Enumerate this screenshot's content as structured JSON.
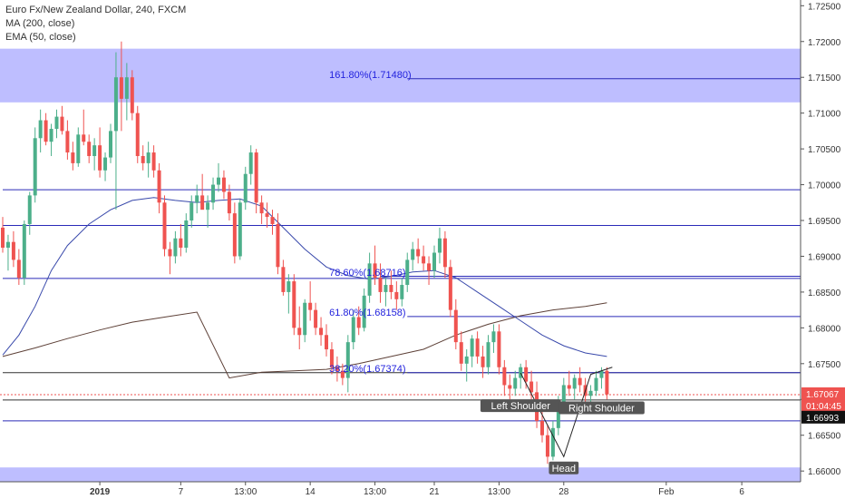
{
  "header": {
    "title": "Euro Fx/New Zealand Dollar, 240, FXCM",
    "indicators": [
      "MA (200, close)",
      "EMA (50, close)"
    ]
  },
  "price_labels": {
    "last_price": "1.67067",
    "countdown": "01:04:45",
    "line_price": "1.66993"
  },
  "colors": {
    "up": "#4caf8a",
    "down": "#ef5350",
    "ma": "#5d4037",
    "ema": "#3949ab",
    "zone": "#b3b3ff",
    "hline": "#2a2ab8",
    "darkline": "#333333",
    "fib": "#2222dd"
  },
  "chart_data": {
    "type": "candlestick",
    "title": "Euro Fx/New Zealand Dollar, 240, FXCM",
    "y_ticks": [
      "1.72500",
      "1.72000",
      "1.71500",
      "1.71000",
      "1.70500",
      "1.70000",
      "1.69500",
      "1.69000",
      "1.68500",
      "1.68000",
      "1.67500",
      "1.67000",
      "1.66500",
      "1.66000"
    ],
    "y_range": [
      1.6585,
      1.7258
    ],
    "x_ticks": [
      {
        "label": "2019",
        "i": 18,
        "bold": true
      },
      {
        "label": "7",
        "i": 33
      },
      {
        "label": "13:00",
        "i": 45
      },
      {
        "label": "14",
        "i": 57
      },
      {
        "label": "13:00",
        "i": 69
      },
      {
        "label": "21",
        "i": 80
      },
      {
        "label": "13:00",
        "i": 92
      },
      {
        "label": "28",
        "i": 104
      },
      {
        "label": "Feb",
        "i": 123
      },
      {
        "label": "6",
        "i": 137
      },
      {
        "label": "13:00",
        "i": 149
      }
    ],
    "candles": [
      [
        1.694,
        1.6955,
        1.6905,
        1.6912
      ],
      [
        1.6912,
        1.693,
        1.688,
        1.692
      ],
      [
        1.692,
        1.6935,
        1.6885,
        1.6895
      ],
      [
        1.6895,
        1.691,
        1.686,
        1.687
      ],
      [
        1.687,
        1.695,
        1.686,
        1.6945
      ],
      [
        1.6945,
        1.699,
        1.693,
        1.6985
      ],
      [
        1.6985,
        1.708,
        1.6975,
        1.7065
      ],
      [
        1.7065,
        1.7105,
        1.7045,
        1.709
      ],
      [
        1.709,
        1.71,
        1.7055,
        1.706
      ],
      [
        1.706,
        1.7085,
        1.704,
        1.7078
      ],
      [
        1.7078,
        1.7105,
        1.7065,
        1.7095
      ],
      [
        1.7095,
        1.711,
        1.707,
        1.7075
      ],
      [
        1.7075,
        1.709,
        1.7035,
        1.7045
      ],
      [
        1.7045,
        1.706,
        1.702,
        1.703
      ],
      [
        1.703,
        1.708,
        1.7025,
        1.707
      ],
      [
        1.707,
        1.7105,
        1.7055,
        1.706
      ],
      [
        1.706,
        1.707,
        1.703,
        1.704
      ],
      [
        1.704,
        1.7065,
        1.702,
        1.7055
      ],
      [
        1.7055,
        1.708,
        1.701,
        1.702
      ],
      [
        1.702,
        1.7045,
        1.7005,
        1.7038
      ],
      [
        1.7038,
        1.7085,
        1.703,
        1.7075
      ],
      [
        1.7075,
        1.7185,
        1.6965,
        1.715
      ],
      [
        1.715,
        1.72,
        1.7075,
        1.712
      ],
      [
        1.712,
        1.717,
        1.709,
        1.715
      ],
      [
        1.715,
        1.716,
        1.709,
        1.71
      ],
      [
        1.71,
        1.711,
        1.703,
        1.704
      ],
      [
        1.704,
        1.7055,
        1.702,
        1.703
      ],
      [
        1.703,
        1.706,
        1.701,
        1.7045
      ],
      [
        1.7045,
        1.7055,
        1.701,
        1.702
      ],
      [
        1.702,
        1.703,
        1.696,
        1.6975
      ],
      [
        1.6975,
        1.6985,
        1.69,
        1.691
      ],
      [
        1.691,
        1.692,
        1.6875,
        1.69
      ],
      [
        1.69,
        1.6935,
        1.689,
        1.6925
      ],
      [
        1.6925,
        1.6945,
        1.69,
        1.6912
      ],
      [
        1.6912,
        1.696,
        1.6905,
        1.695
      ],
      [
        1.695,
        1.6985,
        1.694,
        1.6975
      ],
      [
        1.6975,
        1.7,
        1.696,
        1.6985
      ],
      [
        1.6985,
        1.7015,
        1.697,
        1.6965
      ],
      [
        1.6965,
        1.6985,
        1.694,
        1.6975
      ],
      [
        1.6975,
        1.701,
        1.6965,
        1.7
      ],
      [
        1.7,
        1.703,
        1.699,
        1.701
      ],
      [
        1.701,
        1.702,
        1.698,
        1.699
      ],
      [
        1.699,
        1.7,
        1.695,
        1.696
      ],
      [
        1.696,
        1.6975,
        1.689,
        1.69
      ],
      [
        1.69,
        1.698,
        1.6895,
        1.6975
      ],
      [
        1.6975,
        1.7025,
        1.6965,
        1.7015
      ],
      [
        1.7015,
        1.7055,
        1.7,
        1.7045
      ],
      [
        1.7045,
        1.705,
        1.696,
        1.6975
      ],
      [
        1.6975,
        1.6985,
        1.6945,
        1.696
      ],
      [
        1.696,
        1.6975,
        1.694,
        1.6955
      ],
      [
        1.6955,
        1.6965,
        1.693,
        1.6945
      ],
      [
        1.6945,
        1.696,
        1.6875,
        1.6885
      ],
      [
        1.6885,
        1.6895,
        1.6845,
        1.685
      ],
      [
        1.685,
        1.6875,
        1.682,
        1.6865
      ],
      [
        1.6865,
        1.6875,
        1.679,
        1.68
      ],
      [
        1.68,
        1.683,
        1.677,
        1.679
      ],
      [
        1.679,
        1.684,
        1.678,
        1.6835
      ],
      [
        1.6835,
        1.6865,
        1.681,
        1.6825
      ],
      [
        1.6825,
        1.6835,
        1.679,
        1.68
      ],
      [
        1.68,
        1.6815,
        1.6775,
        1.679
      ],
      [
        1.679,
        1.6805,
        1.676,
        1.677
      ],
      [
        1.677,
        1.678,
        1.6735,
        1.6745
      ],
      [
        1.6745,
        1.676,
        1.6725,
        1.674
      ],
      [
        1.674,
        1.675,
        1.672,
        1.673
      ],
      [
        1.673,
        1.679,
        1.671,
        1.678
      ],
      [
        1.678,
        1.6825,
        1.677,
        1.6815
      ],
      [
        1.6815,
        1.683,
        1.679,
        1.68
      ],
      [
        1.68,
        1.6855,
        1.6795,
        1.6845
      ],
      [
        1.6845,
        1.6905,
        1.6835,
        1.689
      ],
      [
        1.689,
        1.6915,
        1.686,
        1.687
      ],
      [
        1.687,
        1.689,
        1.6835,
        1.685
      ],
      [
        1.685,
        1.687,
        1.683,
        1.686
      ],
      [
        1.686,
        1.688,
        1.684,
        1.685
      ],
      [
        1.685,
        1.6865,
        1.6825,
        1.684
      ],
      [
        1.684,
        1.687,
        1.683,
        1.686
      ],
      [
        1.686,
        1.6905,
        1.685,
        1.6895
      ],
      [
        1.6895,
        1.692,
        1.688,
        1.691
      ],
      [
        1.691,
        1.6925,
        1.689,
        1.69
      ],
      [
        1.69,
        1.6915,
        1.688,
        1.689
      ],
      [
        1.689,
        1.69,
        1.686,
        1.688
      ],
      [
        1.688,
        1.6915,
        1.687,
        1.6905
      ],
      [
        1.6905,
        1.694,
        1.689,
        1.6925
      ],
      [
        1.6925,
        1.6935,
        1.687,
        1.6885
      ],
      [
        1.6885,
        1.6895,
        1.6815,
        1.6825
      ],
      [
        1.6825,
        1.684,
        1.677,
        1.678
      ],
      [
        1.678,
        1.6795,
        1.674,
        1.675
      ],
      [
        1.675,
        1.677,
        1.6725,
        1.676
      ],
      [
        1.676,
        1.679,
        1.6745,
        1.6785
      ],
      [
        1.6785,
        1.6795,
        1.675,
        1.676
      ],
      [
        1.676,
        1.6775,
        1.673,
        1.6745
      ],
      [
        1.6745,
        1.679,
        1.6735,
        1.678
      ],
      [
        1.678,
        1.6805,
        1.6765,
        1.6795
      ],
      [
        1.6795,
        1.6805,
        1.6735,
        1.6745
      ],
      [
        1.6745,
        1.6755,
        1.6705,
        1.672
      ],
      [
        1.672,
        1.6735,
        1.67,
        1.6715
      ],
      [
        1.6715,
        1.674,
        1.6705,
        1.673
      ],
      [
        1.673,
        1.675,
        1.6715,
        1.6745
      ],
      [
        1.6745,
        1.6755,
        1.6715,
        1.6725
      ],
      [
        1.6725,
        1.674,
        1.67,
        1.671
      ],
      [
        1.671,
        1.6725,
        1.666,
        1.667
      ],
      [
        1.667,
        1.669,
        1.664,
        1.665
      ],
      [
        1.665,
        1.6665,
        1.661,
        1.662
      ],
      [
        1.662,
        1.667,
        1.6615,
        1.666
      ],
      [
        1.666,
        1.6705,
        1.665,
        1.6695
      ],
      [
        1.6695,
        1.673,
        1.6685,
        1.672
      ],
      [
        1.672,
        1.674,
        1.6705,
        1.6715
      ],
      [
        1.6715,
        1.6735,
        1.67,
        1.673
      ],
      [
        1.673,
        1.6745,
        1.671,
        1.672
      ],
      [
        1.672,
        1.673,
        1.6695,
        1.6705
      ],
      [
        1.6705,
        1.672,
        1.6695,
        1.6712
      ],
      [
        1.6712,
        1.674,
        1.6705,
        1.673
      ],
      [
        1.673,
        1.6745,
        1.6715,
        1.674
      ],
      [
        1.674,
        1.6745,
        1.67,
        1.6707
      ]
    ],
    "ma200": [
      [
        0,
        1.676
      ],
      [
        6,
        1.6772
      ],
      [
        12,
        1.6785
      ],
      [
        18,
        1.6797
      ],
      [
        24,
        1.6808
      ],
      [
        30,
        1.6815
      ],
      [
        36,
        1.6822
      ],
      [
        42,
        1.673
      ],
      [
        48,
        1.6738
      ],
      [
        54,
        1.674
      ],
      [
        60,
        1.6742
      ],
      [
        66,
        1.675
      ],
      [
        72,
        1.676
      ],
      [
        78,
        1.677
      ],
      [
        84,
        1.679
      ],
      [
        90,
        1.6805
      ],
      [
        96,
        1.6817
      ],
      [
        102,
        1.6825
      ],
      [
        108,
        1.683
      ],
      [
        112,
        1.6835
      ]
    ],
    "ema50": [
      [
        0,
        1.6762
      ],
      [
        3,
        1.679
      ],
      [
        6,
        1.683
      ],
      [
        9,
        1.688
      ],
      [
        12,
        1.6915
      ],
      [
        16,
        1.6945
      ],
      [
        20,
        1.6965
      ],
      [
        24,
        1.6978
      ],
      [
        28,
        1.6982
      ],
      [
        32,
        1.6978
      ],
      [
        36,
        1.6975
      ],
      [
        40,
        1.6978
      ],
      [
        44,
        1.698
      ],
      [
        48,
        1.697
      ],
      [
        52,
        1.694
      ],
      [
        56,
        1.691
      ],
      [
        60,
        1.6885
      ],
      [
        64,
        1.6873
      ],
      [
        68,
        1.6868
      ],
      [
        72,
        1.6872
      ],
      [
        76,
        1.6878
      ],
      [
        80,
        1.688
      ],
      [
        84,
        1.687
      ],
      [
        88,
        1.685
      ],
      [
        92,
        1.683
      ],
      [
        96,
        1.681
      ],
      [
        100,
        1.679
      ],
      [
        104,
        1.6775
      ],
      [
        108,
        1.6765
      ],
      [
        112,
        1.676
      ]
    ],
    "zones": [
      {
        "from": 1.7115,
        "to": 1.719
      },
      {
        "from": 1.6585,
        "to": 1.6605
      }
    ],
    "hlines": [
      {
        "price": 1.6943,
        "color": "hline",
        "from": 0
      },
      {
        "price": 1.6869,
        "color": "hline",
        "from": 0
      },
      {
        "price": 1.6872,
        "color": "hline",
        "from": 70
      },
      {
        "price": 1.6993,
        "color": "hline",
        "from": 0
      },
      {
        "price": 1.67374,
        "color": "darkline",
        "from": 0
      },
      {
        "price": 1.66993,
        "color": "darkline",
        "from": 0
      },
      {
        "price": 1.667,
        "color": "hline",
        "from": 0
      },
      {
        "price": 1.7148,
        "color": "hline",
        "from": 75
      },
      {
        "price": 1.68158,
        "color": "hline",
        "from": 75
      },
      {
        "price": 1.67374,
        "color": "hline",
        "from": 75
      }
    ],
    "fib_labels": [
      {
        "text": "161.80%(1.71480)",
        "price": 1.7148,
        "i": 58
      },
      {
        "text": "78.60%(1.68716)",
        "price": 1.68716,
        "i": 58
      },
      {
        "text": "61.80%(1.68158)",
        "price": 1.68158,
        "i": 58
      },
      {
        "text": "38.20%(1.67374)",
        "price": 1.67374,
        "i": 58
      }
    ],
    "pattern_labels": [
      {
        "text": "Left Shoulder",
        "i": 96,
        "price": 1.669
      },
      {
        "text": "Right Shoulder",
        "i": 111,
        "price": 1.6687
      },
      {
        "text": "Head",
        "i": 104,
        "price": 1.6603
      }
    ]
  }
}
